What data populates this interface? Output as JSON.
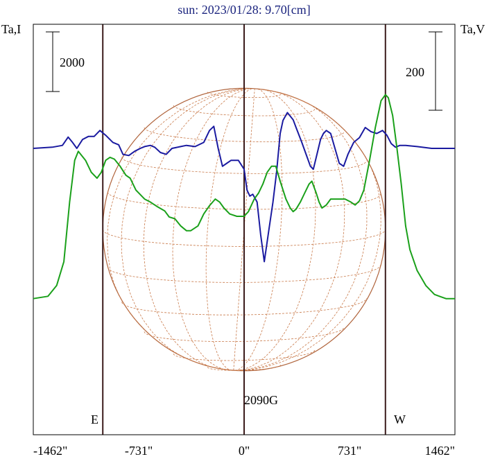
{
  "chart_data": {
    "type": "line",
    "title": "sun: 2023/01/28: 9.70[cm]",
    "left_axis_label": "Ta,I",
    "right_axis_label": "Ta,V",
    "scale_bar_left": "2000",
    "scale_bar_right": "200",
    "east_label": "E",
    "west_label": "W",
    "annotation": "2090G",
    "x_ticks": [
      {
        "value": -1462,
        "label": "-1462\""
      },
      {
        "value": -731,
        "label": "-731\""
      },
      {
        "value": 0,
        "label": "0\""
      },
      {
        "value": 731,
        "label": "731\""
      },
      {
        "value": 1462,
        "label": "1462\""
      }
    ],
    "xlim": [
      -1462,
      1462
    ],
    "vertical_markers": [
      -980,
      0,
      980
    ],
    "series": [
      {
        "color": "#1a1aa0",
        "axis": "left",
        "points": [
          [
            -1462,
            0.0
          ],
          [
            -1330,
            0.02
          ],
          [
            -1260,
            0.05
          ],
          [
            -1220,
            0.19
          ],
          [
            -1190,
            0.1
          ],
          [
            -1160,
            0.0
          ],
          [
            -1120,
            0.15
          ],
          [
            -1080,
            0.2
          ],
          [
            -1040,
            0.2
          ],
          [
            -1000,
            0.3
          ],
          [
            -960,
            0.22
          ],
          [
            -910,
            0.1
          ],
          [
            -870,
            0.06
          ],
          [
            -840,
            -0.1
          ],
          [
            -800,
            -0.12
          ],
          [
            -760,
            -0.05
          ],
          [
            -720,
            0.0
          ],
          [
            -690,
            0.03
          ],
          [
            -650,
            0.05
          ],
          [
            -620,
            0.02
          ],
          [
            -580,
            -0.07
          ],
          [
            -540,
            -0.1
          ],
          [
            -500,
            0.0
          ],
          [
            -440,
            0.03
          ],
          [
            -400,
            0.05
          ],
          [
            -340,
            0.03
          ],
          [
            -280,
            0.1
          ],
          [
            -240,
            0.3
          ],
          [
            -210,
            0.37
          ],
          [
            -180,
            0.0
          ],
          [
            -150,
            -0.3
          ],
          [
            -120,
            -0.25
          ],
          [
            -90,
            -0.2
          ],
          [
            -40,
            -0.2
          ],
          [
            0,
            -0.35
          ],
          [
            20,
            -0.7
          ],
          [
            40,
            -0.8
          ],
          [
            60,
            -0.77
          ],
          [
            90,
            -0.9
          ],
          [
            115,
            -1.45
          ],
          [
            140,
            -1.9
          ],
          [
            170,
            -1.4
          ],
          [
            200,
            -0.9
          ],
          [
            225,
            -0.4
          ],
          [
            250,
            0.25
          ],
          [
            270,
            0.47
          ],
          [
            300,
            0.6
          ],
          [
            340,
            0.48
          ],
          [
            360,
            0.35
          ],
          [
            400,
            0.1
          ],
          [
            430,
            -0.1
          ],
          [
            460,
            -0.3
          ],
          [
            480,
            -0.35
          ],
          [
            500,
            -0.15
          ],
          [
            530,
            0.15
          ],
          [
            550,
            0.25
          ],
          [
            570,
            0.3
          ],
          [
            600,
            0.25
          ],
          [
            630,
            0.0
          ],
          [
            660,
            -0.25
          ],
          [
            690,
            -0.3
          ],
          [
            720,
            -0.1
          ],
          [
            760,
            0.1
          ],
          [
            800,
            0.18
          ],
          [
            840,
            0.35
          ],
          [
            880,
            0.28
          ],
          [
            920,
            0.25
          ],
          [
            960,
            0.3
          ],
          [
            990,
            0.22
          ],
          [
            1020,
            0.08
          ],
          [
            1050,
            0.02
          ],
          [
            1080,
            0.05
          ],
          [
            1120,
            0.05
          ],
          [
            1200,
            0.03
          ],
          [
            1300,
            0.0
          ],
          [
            1462,
            0.0
          ]
        ]
      },
      {
        "color": "#1aa01a",
        "axis": "right",
        "points": [
          [
            -1462,
            -2.52
          ],
          [
            -1360,
            -2.48
          ],
          [
            -1300,
            -2.3
          ],
          [
            -1250,
            -1.9
          ],
          [
            -1210,
            -0.9
          ],
          [
            -1175,
            -0.2
          ],
          [
            -1150,
            -0.05
          ],
          [
            -1100,
            -0.2
          ],
          [
            -1060,
            -0.4
          ],
          [
            -1020,
            -0.5
          ],
          [
            -990,
            -0.4
          ],
          [
            -960,
            -0.2
          ],
          [
            -930,
            -0.15
          ],
          [
            -900,
            -0.18
          ],
          [
            -860,
            -0.3
          ],
          [
            -820,
            -0.45
          ],
          [
            -790,
            -0.5
          ],
          [
            -750,
            -0.7
          ],
          [
            -690,
            -0.85
          ],
          [
            -650,
            -0.9
          ],
          [
            -600,
            -0.98
          ],
          [
            -550,
            -1.05
          ],
          [
            -520,
            -1.15
          ],
          [
            -480,
            -1.18
          ],
          [
            -440,
            -1.3
          ],
          [
            -400,
            -1.38
          ],
          [
            -370,
            -1.38
          ],
          [
            -320,
            -1.3
          ],
          [
            -280,
            -1.1
          ],
          [
            -240,
            -0.96
          ],
          [
            -200,
            -0.85
          ],
          [
            -170,
            -0.9
          ],
          [
            -140,
            -1.0
          ],
          [
            -100,
            -1.1
          ],
          [
            -50,
            -1.14
          ],
          [
            0,
            -1.14
          ],
          [
            30,
            -1.06
          ],
          [
            70,
            -0.85
          ],
          [
            100,
            -0.75
          ],
          [
            130,
            -0.6
          ],
          [
            160,
            -0.4
          ],
          [
            190,
            -0.3
          ],
          [
            220,
            -0.3
          ],
          [
            250,
            -0.55
          ],
          [
            290,
            -0.85
          ],
          [
            320,
            -1.0
          ],
          [
            340,
            -1.06
          ],
          [
            360,
            -1.02
          ],
          [
            390,
            -0.9
          ],
          [
            420,
            -0.75
          ],
          [
            450,
            -0.6
          ],
          [
            470,
            -0.55
          ],
          [
            500,
            -0.75
          ],
          [
            520,
            -0.9
          ],
          [
            540,
            -1.0
          ],
          [
            570,
            -0.95
          ],
          [
            600,
            -0.85
          ],
          [
            640,
            -0.85
          ],
          [
            700,
            -0.85
          ],
          [
            740,
            -0.9
          ],
          [
            770,
            -0.95
          ],
          [
            800,
            -0.88
          ],
          [
            830,
            -0.7
          ],
          [
            870,
            -0.2
          ],
          [
            910,
            0.35
          ],
          [
            950,
            0.8
          ],
          [
            980,
            0.9
          ],
          [
            1000,
            0.85
          ],
          [
            1030,
            0.55
          ],
          [
            1060,
            0.0
          ],
          [
            1090,
            -0.6
          ],
          [
            1120,
            -1.3
          ],
          [
            1150,
            -1.7
          ],
          [
            1200,
            -2.05
          ],
          [
            1260,
            -2.3
          ],
          [
            1320,
            -2.45
          ],
          [
            1400,
            -2.52
          ],
          [
            1462,
            -2.52
          ]
        ]
      }
    ],
    "disk": {
      "radius_arcsec": 980,
      "grid": true
    }
  }
}
